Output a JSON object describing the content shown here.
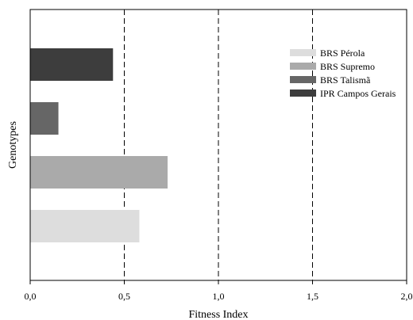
{
  "chart_data": {
    "type": "bar",
    "orientation": "horizontal",
    "xlabel": "Fitness Index",
    "ylabel": "Genotypes",
    "xlim": [
      0,
      2
    ],
    "xticks": [
      "0,0",
      "0,5",
      "1,0",
      "1,5",
      "2,0"
    ],
    "xtick_values": [
      0,
      0.5,
      1.0,
      1.5,
      2.0
    ],
    "reference_lines": [
      0.5,
      1.0,
      1.5
    ],
    "legend_position": "top-right",
    "series": [
      {
        "name": "BRS Pérola",
        "value": 0.58,
        "color": "#dddddd"
      },
      {
        "name": "BRS Supremo",
        "value": 0.73,
        "color": "#aaaaaa"
      },
      {
        "name": "BRS Talismã",
        "value": 0.15,
        "color": "#666666"
      },
      {
        "name": "IPR Campos Gerais",
        "value": 0.44,
        "color": "#3d3d3d"
      }
    ]
  }
}
